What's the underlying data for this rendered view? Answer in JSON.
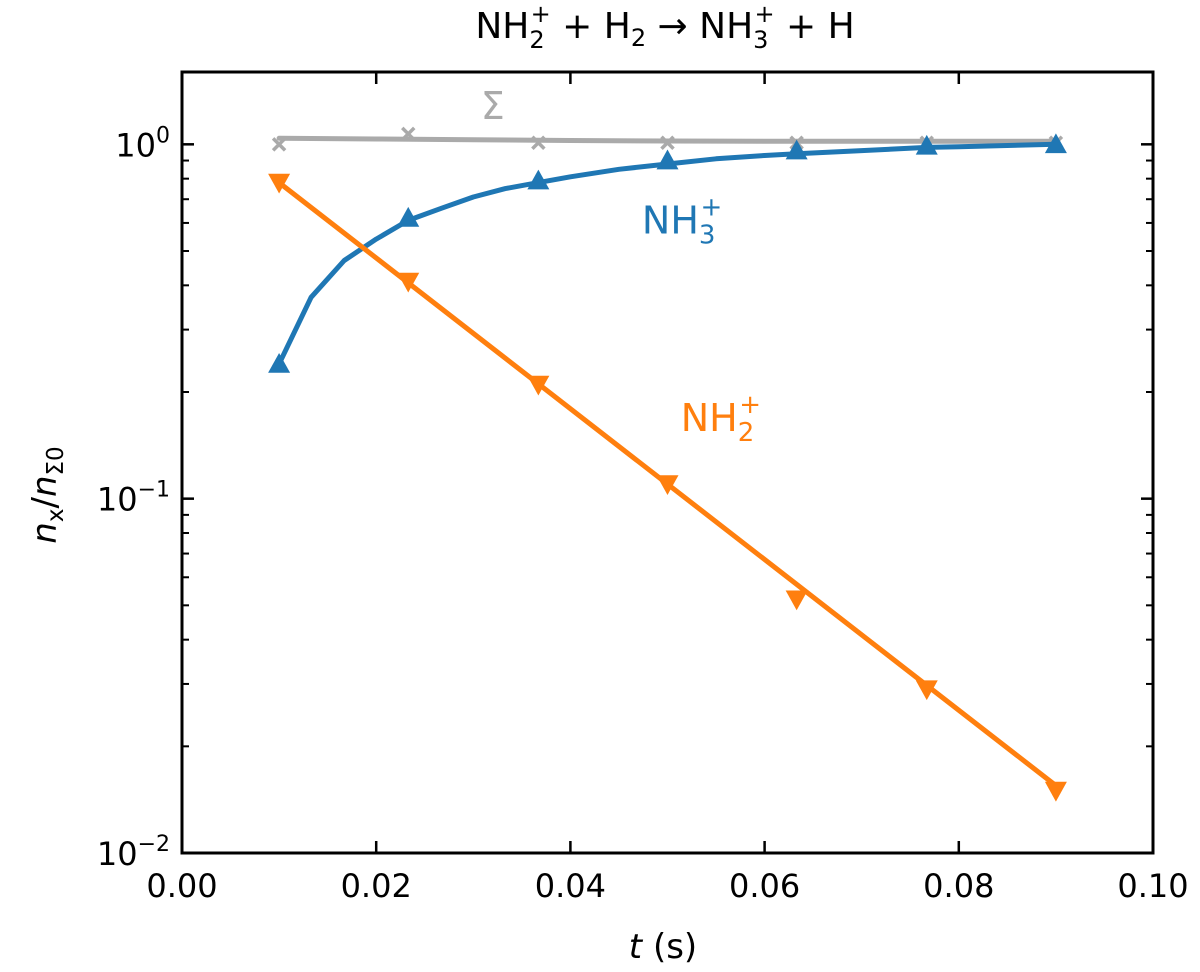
{
  "chart_data": {
    "type": "line",
    "title": {
      "p1": "NH",
      "p1sub": "2",
      "p1sup": "+",
      "p2": " + H",
      "p2sub": "2",
      "p3": " → NH",
      "p3sub": "3",
      "p3sup": "+",
      "p4": " + H"
    },
    "xlabel": {
      "var": "t",
      "unit": " (s)"
    },
    "ylabel": {
      "var": "n",
      "sub1": "x",
      "slash": "/",
      "var2": "n",
      "sub2": "Σ0"
    },
    "xlim": [
      0.0,
      0.1
    ],
    "ylim": [
      0.01,
      1.6
    ],
    "yscale": "log",
    "xticks": [
      "0.00",
      "0.02",
      "0.04",
      "0.06",
      "0.08",
      "0.10"
    ],
    "yticks": [
      {
        "value": 1,
        "base": "10",
        "exp": "0"
      },
      {
        "value": 0.1,
        "base": "10",
        "exp": "−1"
      },
      {
        "value": 0.01,
        "base": "10",
        "exp": "−2"
      }
    ],
    "x": [
      0.01,
      0.0233,
      0.0367,
      0.05,
      0.0633,
      0.0767,
      0.09
    ],
    "series": [
      {
        "key": "sum",
        "name": "Σ",
        "color": "#aaaaaa",
        "marker": "x",
        "points": [
          1.0,
          1.07,
          1.01,
          1.01,
          1.01,
          1.01,
          1.01
        ],
        "fit": {
          "x": [
            0.01,
            0.02,
            0.03,
            0.04,
            0.05,
            0.06,
            0.07,
            0.08,
            0.09
          ],
          "y": [
            1.04,
            1.035,
            1.03,
            1.025,
            1.022,
            1.02,
            1.02,
            1.02,
            1.02
          ]
        }
      },
      {
        "key": "nh3",
        "name": "NH",
        "name_sub": "3",
        "name_sup": "+",
        "color": "#1f77b4",
        "marker": "triangle-up",
        "points": [
          0.24,
          0.62,
          0.79,
          0.9,
          0.96,
          0.99,
          1.0
        ],
        "fit": {
          "x": [
            0.01,
            0.0133,
            0.0167,
            0.02,
            0.0233,
            0.0267,
            0.03,
            0.0333,
            0.0367,
            0.04,
            0.045,
            0.05,
            0.055,
            0.06,
            0.0633,
            0.07,
            0.0767,
            0.08,
            0.09
          ],
          "y": [
            0.24,
            0.37,
            0.47,
            0.54,
            0.61,
            0.66,
            0.71,
            0.75,
            0.78,
            0.81,
            0.85,
            0.88,
            0.91,
            0.93,
            0.94,
            0.96,
            0.98,
            0.985,
            1.0
          ]
        }
      },
      {
        "key": "nh2",
        "name": "NH",
        "name_sub": "2",
        "name_sup": "+",
        "color": "#ff7f0e",
        "marker": "triangle-down",
        "points": [
          0.78,
          0.41,
          0.21,
          0.11,
          0.052,
          0.029,
          0.015
        ],
        "fit": {
          "x": [
            0.01,
            0.09
          ],
          "y": [
            0.78,
            0.0155
          ]
        }
      }
    ]
  }
}
